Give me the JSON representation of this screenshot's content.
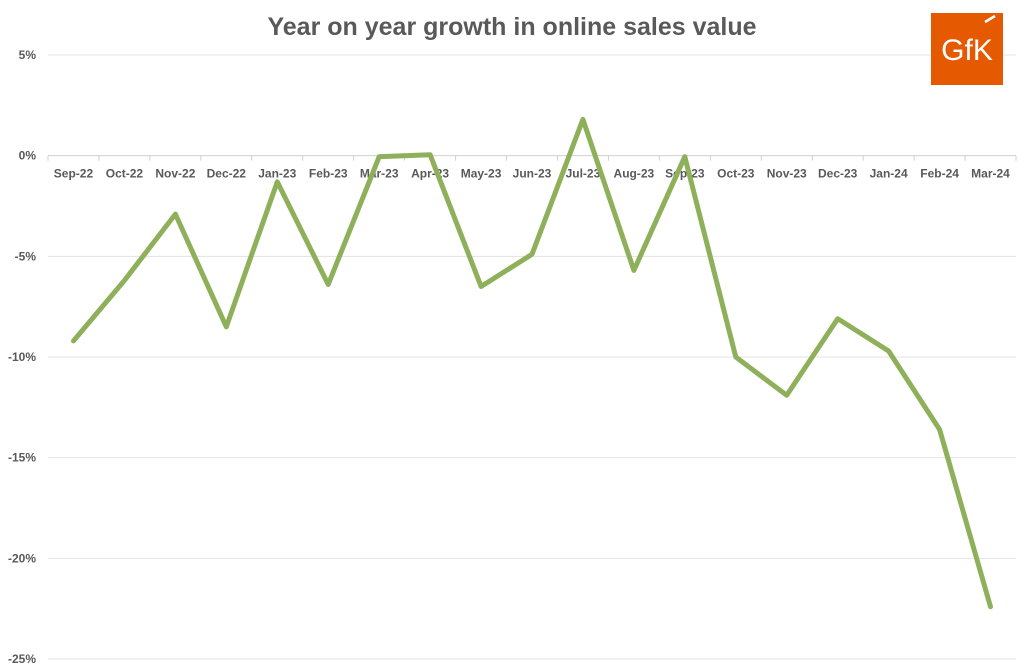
{
  "chart_data": {
    "type": "line",
    "title": "Year on year growth in online sales value",
    "xlabel": "",
    "ylabel": "",
    "categories": [
      "Sep-22",
      "Oct-22",
      "Nov-22",
      "Dec-22",
      "Jan-23",
      "Feb-23",
      "Mar-23",
      "Apr-23",
      "May-23",
      "Jun-23",
      "Jul-23",
      "Aug-23",
      "Sep-23",
      "Oct-23",
      "Nov-23",
      "Dec-23",
      "Jan-24",
      "Feb-24",
      "Mar-24"
    ],
    "series": [
      {
        "values": [
          -9.2,
          -6.2,
          -2.9,
          -8.5,
          -1.3,
          -6.4,
          -0.05,
          0.05,
          -6.5,
          -4.9,
          1.8,
          -5.7,
          -0.05,
          -10.0,
          -11.9,
          -8.1,
          -9.7,
          -13.6,
          -22.4
        ],
        "color": "#8fb05a"
      }
    ],
    "yticks": [
      5,
      0,
      -5,
      -10,
      -15,
      -20,
      -25
    ],
    "ytick_labels": [
      "5%",
      "0%",
      "-5%",
      "-10%",
      "-15%",
      "-20%",
      "-25%"
    ],
    "ylim": [
      -25,
      5
    ],
    "grid": true,
    "legend": "none"
  },
  "logo": {
    "text": "GfK",
    "background": "#e55a00"
  }
}
